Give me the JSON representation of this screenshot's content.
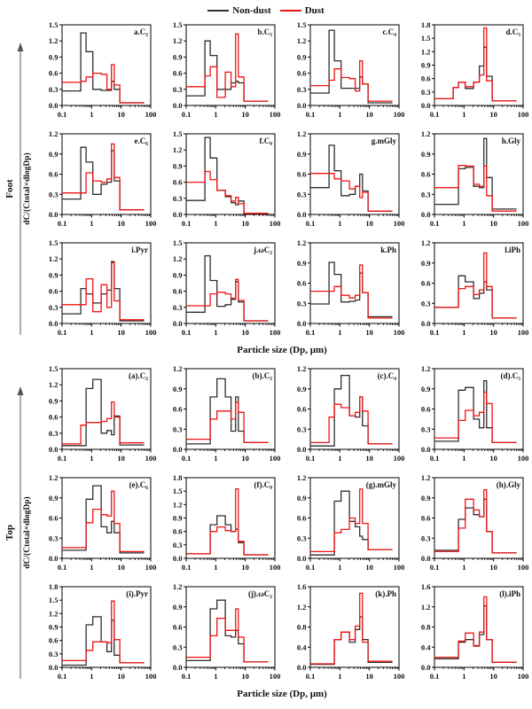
{
  "legend": {
    "items": [
      {
        "label": "Non-dust",
        "color": "#2e2e2e"
      },
      {
        "label": "Dust",
        "color": "#ee1414"
      }
    ]
  },
  "chart_data": {
    "type": "step-histogram",
    "x_scale": "log",
    "x_range": [
      0.1,
      100
    ],
    "x_ticks": [
      0.1,
      1,
      10,
      100
    ],
    "x_edges": [
      0.1,
      0.43,
      0.65,
      1.1,
      2.1,
      3.3,
      4.7,
      5.8,
      9.0,
      60
    ],
    "series_names": [
      "Non-dust",
      "Dust"
    ],
    "series_colors": {
      "nondust": "#2e2e2e",
      "dust": "#ee1414"
    },
    "grid": false,
    "legend_position": "top-center",
    "groups": [
      {
        "name": "Foot",
        "ylabel": "dC/(Ctotal×dlogDp)",
        "xlabel": "Particle size (Dp, μm)",
        "plots": [
          {
            "label": "a.C₂",
            "ymax": 1.5,
            "ystep": 0.3,
            "nondust": [
              0.27,
              1.35,
              1.0,
              0.3,
              0.28,
              0.28,
              0.45,
              0.3,
              0.05
            ],
            "dust": [
              0.43,
              0.45,
              0.53,
              0.6,
              0.58,
              0.3,
              0.76,
              0.38,
              0.05
            ]
          },
          {
            "label": "b.C₃",
            "ymax": 1.5,
            "ystep": 0.3,
            "nondust": [
              0.18,
              1.2,
              0.93,
              0.3,
              0.3,
              0.42,
              0.45,
              0.42,
              0.08
            ],
            "dust": [
              0.35,
              0.55,
              0.72,
              0.15,
              0.62,
              0.35,
              1.33,
              0.53,
              0.08
            ]
          },
          {
            "label": "c.C₄",
            "ymax": 1.5,
            "ystep": 0.3,
            "nondust": [
              0.23,
              1.4,
              0.83,
              0.32,
              0.32,
              0.32,
              0.53,
              0.4,
              0.05
            ],
            "dust": [
              0.37,
              0.47,
              0.68,
              0.52,
              0.5,
              0.27,
              0.83,
              0.4,
              0.08
            ]
          },
          {
            "label": "d.C₅",
            "ymax": 1.8,
            "ystep": 0.3,
            "nondust": [
              0.15,
              0.4,
              0.52,
              0.38,
              0.52,
              0.88,
              1.3,
              0.65,
              0.1
            ],
            "dust": [
              0.15,
              0.4,
              0.52,
              0.42,
              0.52,
              0.68,
              1.73,
              0.55,
              0.1
            ]
          },
          {
            "label": "e.C₆",
            "ymax": 1.2,
            "ystep": 0.3,
            "nondust": [
              0.23,
              1.0,
              0.78,
              0.3,
              0.45,
              0.48,
              0.95,
              0.5,
              0.07
            ],
            "dust": [
              0.32,
              0.32,
              0.62,
              0.5,
              0.48,
              0.53,
              1.05,
              0.55,
              0.07
            ]
          },
          {
            "label": "f.C₉",
            "ymax": 1.5,
            "ystep": 0.3,
            "nondust": [
              0.26,
              1.43,
              1.05,
              0.45,
              0.33,
              0.22,
              0.18,
              0.25,
              0.02
            ],
            "dust": [
              0.6,
              0.8,
              0.65,
              0.45,
              0.35,
              0.25,
              0.32,
              0.2,
              0.02
            ]
          },
          {
            "label": "g.mGly",
            "ymax": 1.2,
            "ystep": 0.3,
            "nondust": [
              0.4,
              1.03,
              0.65,
              0.28,
              0.3,
              0.42,
              0.6,
              0.35,
              0.05
            ],
            "dust": [
              0.61,
              0.61,
              0.53,
              0.5,
              0.38,
              0.42,
              0.25,
              0.33,
              0.05
            ]
          },
          {
            "label": "h.Gly",
            "ymax": 1.2,
            "ystep": 0.3,
            "nondust": [
              0.15,
              0.15,
              0.68,
              0.7,
              0.42,
              0.4,
              1.13,
              0.55,
              0.08
            ],
            "dust": [
              0.4,
              0.4,
              0.73,
              0.72,
              0.45,
              0.42,
              0.72,
              0.28,
              0.05
            ]
          },
          {
            "label": "i.Pyr",
            "ymax": 1.5,
            "ystep": 0.3,
            "nondust": [
              0.18,
              0.65,
              0.55,
              0.38,
              0.55,
              0.62,
              1.15,
              0.65,
              0.05
            ],
            "dust": [
              0.35,
              0.35,
              0.83,
              0.22,
              0.72,
              0.3,
              1.13,
              0.42,
              0.07
            ]
          },
          {
            "label": "j.ωC₂",
            "ymax": 1.5,
            "ystep": 0.3,
            "nondust": [
              0.21,
              1.26,
              0.8,
              0.32,
              0.35,
              0.45,
              0.78,
              0.4,
              0.05
            ],
            "dust": [
              0.33,
              0.33,
              0.55,
              0.58,
              0.55,
              0.47,
              0.82,
              0.43,
              0.05
            ]
          },
          {
            "label": "k.Ph",
            "ymax": 1.2,
            "ystep": 0.3,
            "nondust": [
              0.29,
              0.91,
              0.73,
              0.32,
              0.33,
              0.35,
              0.75,
              0.46,
              0.1
            ],
            "dust": [
              0.48,
              0.48,
              0.55,
              0.42,
              0.38,
              0.42,
              0.87,
              0.46,
              0.08
            ]
          },
          {
            "label": "l.iPh",
            "ymax": 1.2,
            "ystep": 0.3,
            "nondust": [
              0.24,
              0.24,
              0.71,
              0.62,
              0.37,
              0.45,
              0.62,
              0.5,
              0.08
            ],
            "dust": [
              0.24,
              0.24,
              0.52,
              0.55,
              0.43,
              0.5,
              1.05,
              0.55,
              0.08
            ]
          }
        ]
      },
      {
        "name": "Top",
        "ylabel": "dC/(Ctotal×dlogDp)",
        "xlabel": "Particle size (Dp, μm)",
        "plots": [
          {
            "label": "(a).C₂",
            "ymax": 1.5,
            "ystep": 0.3,
            "nondust": [
              0.07,
              0.07,
              1.13,
              1.3,
              0.3,
              0.35,
              0.27,
              0.62,
              0.08
            ],
            "dust": [
              0.1,
              0.45,
              0.5,
              0.5,
              0.52,
              0.57,
              0.88,
              0.6,
              0.12
            ]
          },
          {
            "label": "(b).C₃",
            "ymax": 1.2,
            "ystep": 0.3,
            "nondust": [
              0.08,
              0.08,
              0.78,
              1.05,
              0.78,
              0.27,
              0.78,
              0.27,
              0.1
            ],
            "dust": [
              0.15,
              0.15,
              0.45,
              0.57,
              0.57,
              0.45,
              0.7,
              0.55,
              0.1
            ]
          },
          {
            "label": "(c).C₄",
            "ymax": 1.2,
            "ystep": 0.3,
            "nondust": [
              0.05,
              0.05,
              0.9,
              1.1,
              0.5,
              0.48,
              0.78,
              0.35,
              0.08
            ],
            "dust": [
              0.1,
              0.48,
              0.67,
              0.62,
              0.5,
              0.55,
              0.78,
              0.57,
              0.08
            ]
          },
          {
            "label": "(d).C₅",
            "ymax": 1.2,
            "ystep": 0.3,
            "nondust": [
              0.12,
              0.12,
              0.88,
              0.92,
              0.45,
              0.32,
              1.02,
              0.32,
              0.1
            ],
            "dust": [
              0.17,
              0.17,
              0.43,
              0.58,
              0.5,
              0.55,
              0.85,
              0.68,
              0.1
            ]
          },
          {
            "label": "(e).C₆",
            "ymax": 1.2,
            "ystep": 0.3,
            "nondust": [
              0.12,
              0.12,
              0.88,
              1.08,
              0.47,
              0.38,
              0.55,
              0.38,
              0.08
            ],
            "dust": [
              0.16,
              0.16,
              0.53,
              0.73,
              0.65,
              0.63,
              1.0,
              0.52,
              0.1
            ]
          },
          {
            "label": "(f).C₉",
            "ymax": 1.8,
            "ystep": 0.3,
            "nondust": [
              0.1,
              0.1,
              0.75,
              0.95,
              0.75,
              0.6,
              0.65,
              0.35,
              0.08
            ],
            "dust": [
              0.1,
              0.1,
              0.6,
              0.7,
              0.62,
              0.6,
              1.55,
              0.38,
              0.08
            ]
          },
          {
            "label": "(g).mGly",
            "ymax": 1.2,
            "ystep": 0.3,
            "nondust": [
              0.05,
              0.05,
              0.85,
              1.0,
              0.55,
              0.47,
              0.33,
              0.28,
              0.13
            ],
            "dust": [
              0.1,
              0.1,
              0.38,
              0.43,
              0.6,
              0.52,
              1.03,
              0.52,
              0.13
            ]
          },
          {
            "label": "(h).Gly",
            "ymax": 1.2,
            "ystep": 0.3,
            "nondust": [
              0.12,
              0.12,
              0.58,
              0.75,
              0.65,
              0.62,
              0.88,
              0.4,
              0.08
            ],
            "dust": [
              0.1,
              0.1,
              0.45,
              0.88,
              0.72,
              0.62,
              1.02,
              0.4,
              0.08
            ]
          },
          {
            "label": "(i).Pyr",
            "ymax": 1.8,
            "ystep": 0.3,
            "nondust": [
              0.05,
              0.05,
              0.95,
              1.13,
              0.57,
              0.35,
              1.05,
              0.27,
              0.1
            ],
            "dust": [
              0.15,
              0.15,
              0.38,
              0.57,
              0.57,
              0.55,
              1.48,
              0.62,
              0.1
            ]
          },
          {
            "label": "(j).ωC₂",
            "ymax": 1.2,
            "ystep": 0.3,
            "nondust": [
              0.1,
              0.1,
              0.87,
              1.0,
              0.47,
              0.45,
              0.55,
              0.35,
              0.08
            ],
            "dust": [
              0.15,
              0.15,
              0.47,
              0.73,
              0.55,
              0.55,
              0.87,
              0.45,
              0.08
            ]
          },
          {
            "label": "(k).Ph",
            "ymax": 1.6,
            "ystep": 0.4,
            "nondust": [
              0.06,
              0.06,
              0.55,
              0.7,
              0.5,
              0.75,
              1.0,
              0.55,
              0.1
            ],
            "dust": [
              0.07,
              0.07,
              0.55,
              0.7,
              0.55,
              0.82,
              1.47,
              0.5,
              0.12
            ]
          },
          {
            "label": "(l).iPh",
            "ymax": 1.6,
            "ystep": 0.4,
            "nondust": [
              0.17,
              0.17,
              0.5,
              0.55,
              0.43,
              0.65,
              1.22,
              0.55,
              0.1
            ],
            "dust": [
              0.2,
              0.2,
              0.52,
              0.68,
              0.42,
              0.7,
              1.4,
              0.55,
              0.1
            ]
          }
        ]
      }
    ]
  }
}
